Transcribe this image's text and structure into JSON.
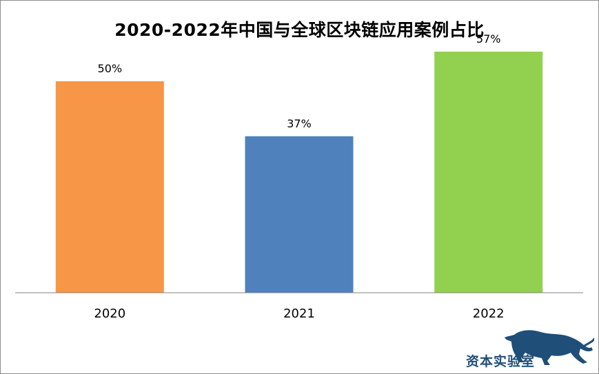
{
  "chart_data": {
    "type": "bar",
    "title": "2020-2022年中国与全球区块链应用案例占比",
    "categories": [
      "2020",
      "2021",
      "2022"
    ],
    "values": [
      50,
      37,
      57
    ],
    "value_labels": [
      "50%",
      "37%",
      "57%"
    ],
    "colors": [
      "#f79646",
      "#4f81bd",
      "#92d050"
    ],
    "xlabel": "",
    "ylabel": "",
    "ylim": [
      0,
      60
    ],
    "grid": false,
    "legend": "none"
  },
  "watermark": {
    "text": "资本实验室",
    "color": "#1f4e79"
  }
}
